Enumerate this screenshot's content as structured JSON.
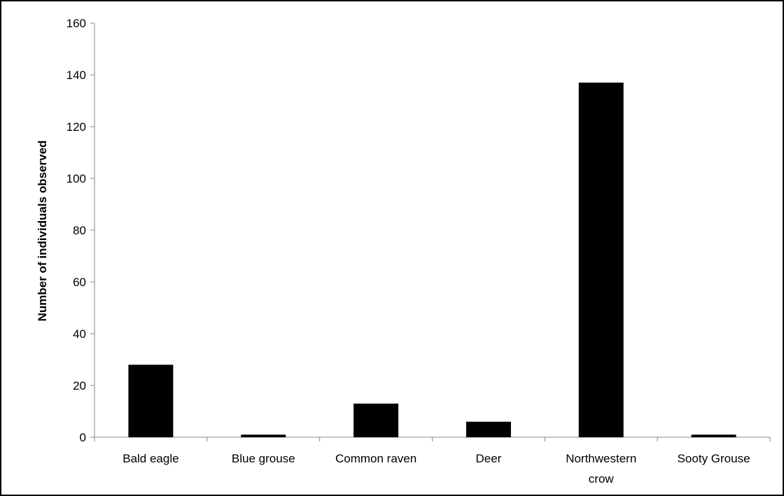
{
  "chart_data": {
    "type": "bar",
    "title": "",
    "xlabel": "",
    "ylabel": "Number of individuals observed",
    "ylim": [
      0,
      160
    ],
    "yticks": [
      0,
      20,
      40,
      60,
      80,
      100,
      120,
      140,
      160
    ],
    "grid": false,
    "legend": "none",
    "bar_color": "#000000",
    "categories": [
      [
        "Bald eagle"
      ],
      [
        "Blue grouse"
      ],
      [
        "Common raven"
      ],
      [
        "Deer"
      ],
      [
        "Northwestern",
        "crow"
      ],
      [
        "Sooty Grouse"
      ]
    ],
    "values": [
      28,
      1,
      13,
      6,
      137,
      1
    ]
  }
}
